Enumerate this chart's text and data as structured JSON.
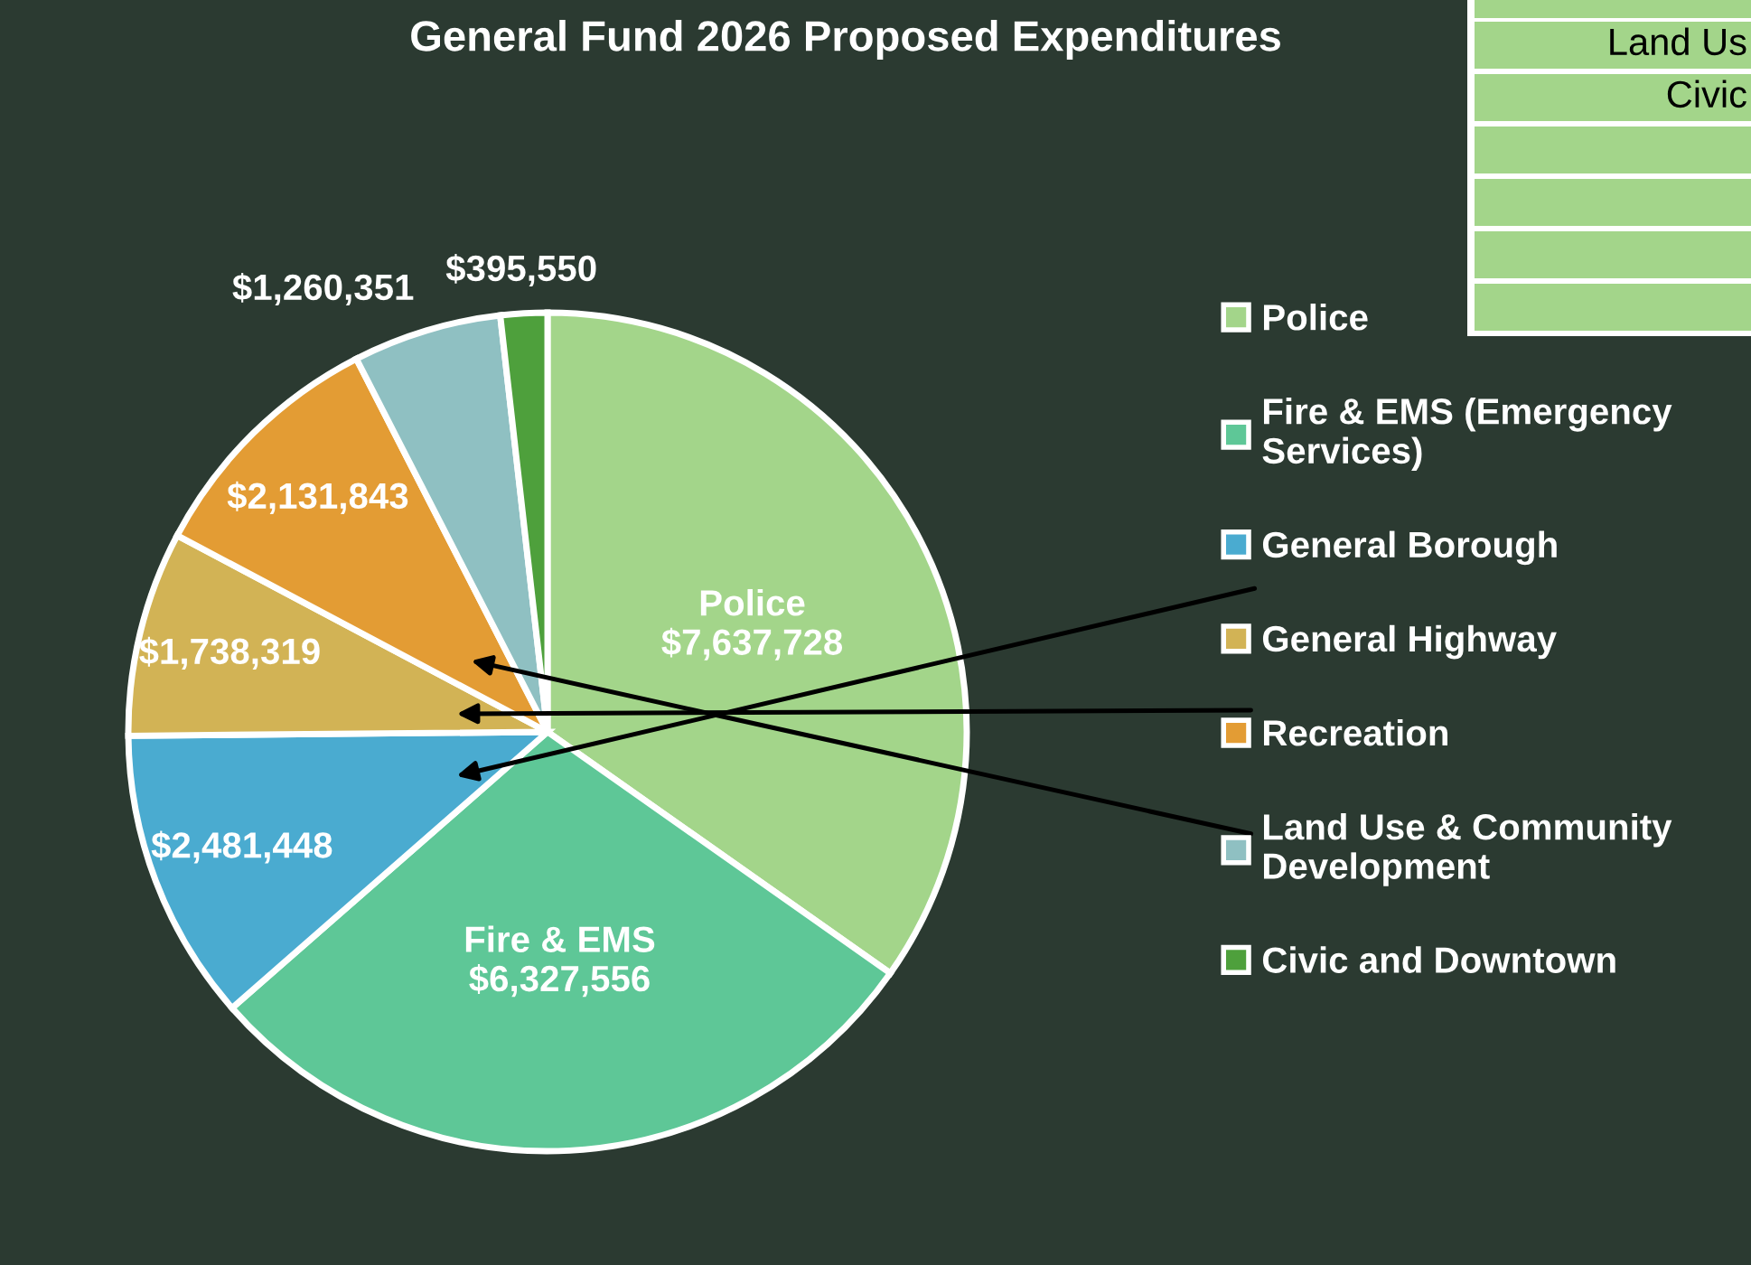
{
  "chart_data": {
    "type": "pie",
    "title": "General Fund 2026 Proposed Expenditures",
    "categories": [
      "Police",
      "Fire & EMS (Emergency Services)",
      "General Borough",
      "General Highway",
      "Recreation",
      "Land Use & Community Development",
      "Civic and Downtown"
    ],
    "values": [
      7637728,
      6327556,
      2481448,
      1738319,
      2131843,
      1260351,
      395550
    ],
    "colors": [
      "#a3d58a",
      "#5ec797",
      "#4aabd0",
      "#d2b355",
      "#e39c34",
      "#8fc0c2",
      "#4ea03c"
    ],
    "value_labels": [
      "Police\n$7,637,728",
      "Fire & EMS\n$6,327,556",
      "$2,481,448",
      "$1,738,319",
      "$2,131,843",
      "$1,260,351",
      "$395,550"
    ],
    "legend": "right",
    "annotations": [
      "Land Us",
      "Civic"
    ]
  }
}
